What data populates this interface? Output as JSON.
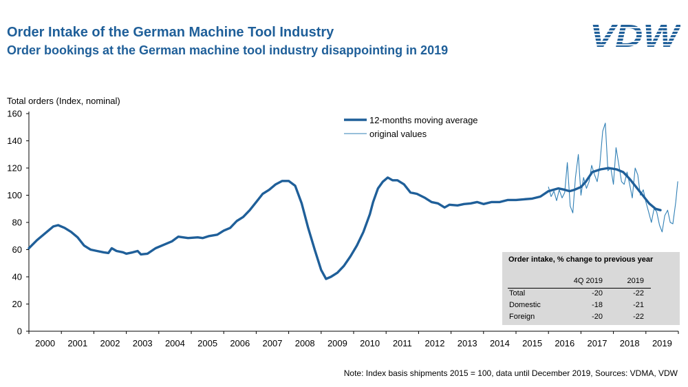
{
  "header": {
    "title": "Order Intake of the German Machine Tool Industry",
    "subtitle": "Order bookings at the German machine tool industry disappointing in 2019",
    "logo_text": "VDW"
  },
  "colors": {
    "brand": "#1f5f99",
    "series_avg": "#1f5f99",
    "series_orig": "#2f7fb5",
    "table_bg": "#d9d9d9"
  },
  "note": "Note: Index basis shipments  2015 = 100, data until December 2019, Sources: VDMA, VDW",
  "table": {
    "title": "Order intake, % change to previous year",
    "col_headers": [
      "",
      "4Q 2019",
      "2019"
    ],
    "rows": [
      {
        "label": "Total",
        "q4": "-20",
        "year": "-22"
      },
      {
        "label": "Domestic",
        "q4": "-18",
        "year": "-21"
      },
      {
        "label": "Foreign",
        "q4": "-20",
        "year": "-22"
      }
    ]
  },
  "chart_data": {
    "type": "line",
    "title": "Order Intake of the German Machine Tool Industry",
    "ylabel": "Total orders (Index, nominal)",
    "xlabel": "",
    "ylim": [
      0,
      160
    ],
    "yticks": [
      0,
      20,
      40,
      60,
      80,
      100,
      120,
      140,
      160
    ],
    "xlim": [
      2000,
      2020
    ],
    "categories": [
      "2000",
      "2001",
      "2002",
      "2003",
      "2004",
      "2005",
      "2006",
      "2007",
      "2008",
      "2009",
      "2010",
      "2011",
      "2012",
      "2013",
      "2014",
      "2015",
      "2016",
      "2017",
      "2018",
      "2019"
    ],
    "grid": false,
    "legend_position": "top-center",
    "series": [
      {
        "name": "12-months moving average",
        "style": "thick",
        "points": [
          [
            2000.0,
            61
          ],
          [
            2000.25,
            67
          ],
          [
            2000.5,
            72
          ],
          [
            2000.75,
            77
          ],
          [
            2000.9,
            78
          ],
          [
            2001.1,
            76
          ],
          [
            2001.3,
            73
          ],
          [
            2001.5,
            69
          ],
          [
            2001.7,
            63
          ],
          [
            2001.9,
            60
          ],
          [
            2002.1,
            59
          ],
          [
            2002.3,
            58
          ],
          [
            2002.45,
            57.5
          ],
          [
            2002.55,
            61
          ],
          [
            2002.7,
            59
          ],
          [
            2002.9,
            58
          ],
          [
            2003.0,
            57
          ],
          [
            2003.2,
            58
          ],
          [
            2003.35,
            59
          ],
          [
            2003.45,
            56.5
          ],
          [
            2003.65,
            57
          ],
          [
            2003.9,
            61
          ],
          [
            2004.2,
            64
          ],
          [
            2004.4,
            66
          ],
          [
            2004.6,
            69.5
          ],
          [
            2004.9,
            68.5
          ],
          [
            2005.2,
            69
          ],
          [
            2005.35,
            68.5
          ],
          [
            2005.55,
            70
          ],
          [
            2005.8,
            71
          ],
          [
            2006.0,
            74
          ],
          [
            2006.2,
            76
          ],
          [
            2006.4,
            81
          ],
          [
            2006.6,
            84
          ],
          [
            2006.8,
            89
          ],
          [
            2007.0,
            95
          ],
          [
            2007.2,
            101
          ],
          [
            2007.4,
            104
          ],
          [
            2007.6,
            108
          ],
          [
            2007.8,
            110.5
          ],
          [
            2008.0,
            110.5
          ],
          [
            2008.2,
            107
          ],
          [
            2008.4,
            94
          ],
          [
            2008.6,
            76
          ],
          [
            2008.8,
            60
          ],
          [
            2009.0,
            45
          ],
          [
            2009.15,
            38.5
          ],
          [
            2009.3,
            40
          ],
          [
            2009.5,
            43
          ],
          [
            2009.7,
            48
          ],
          [
            2009.9,
            55
          ],
          [
            2010.1,
            63
          ],
          [
            2010.3,
            73
          ],
          [
            2010.5,
            86
          ],
          [
            2010.6,
            95
          ],
          [
            2010.75,
            105
          ],
          [
            2010.9,
            110
          ],
          [
            2011.05,
            113
          ],
          [
            2011.2,
            111
          ],
          [
            2011.35,
            111
          ],
          [
            2011.55,
            108
          ],
          [
            2011.75,
            102
          ],
          [
            2011.95,
            101
          ],
          [
            2012.2,
            98
          ],
          [
            2012.4,
            95
          ],
          [
            2012.6,
            94
          ],
          [
            2012.8,
            91
          ],
          [
            2012.95,
            93
          ],
          [
            2013.2,
            92.5
          ],
          [
            2013.4,
            93.5
          ],
          [
            2013.6,
            94
          ],
          [
            2013.8,
            95
          ],
          [
            2014.0,
            93.5
          ],
          [
            2014.25,
            95
          ],
          [
            2014.5,
            95
          ],
          [
            2014.75,
            96.5
          ],
          [
            2015.0,
            96.5
          ],
          [
            2015.25,
            97
          ],
          [
            2015.5,
            97.5
          ],
          [
            2015.75,
            99
          ],
          [
            2016.0,
            103
          ],
          [
            2016.3,
            105
          ],
          [
            2016.5,
            104
          ],
          [
            2016.65,
            103
          ],
          [
            2016.8,
            104
          ],
          [
            2017.0,
            106
          ],
          [
            2017.15,
            110
          ],
          [
            2017.35,
            117
          ],
          [
            2017.6,
            119
          ],
          [
            2017.85,
            120
          ],
          [
            2018.1,
            119
          ],
          [
            2018.3,
            117
          ],
          [
            2018.5,
            112
          ],
          [
            2018.7,
            106
          ],
          [
            2018.9,
            100
          ],
          [
            2019.1,
            94
          ],
          [
            2019.3,
            90
          ],
          [
            2019.45,
            89
          ]
        ]
      },
      {
        "name": "original values",
        "style": "thin",
        "points": [
          [
            2016.0,
            106
          ],
          [
            2016.08,
            99
          ],
          [
            2016.17,
            103
          ],
          [
            2016.25,
            96
          ],
          [
            2016.33,
            104
          ],
          [
            2016.42,
            98
          ],
          [
            2016.5,
            102
          ],
          [
            2016.58,
            124
          ],
          [
            2016.67,
            92
          ],
          [
            2016.75,
            87
          ],
          [
            2016.83,
            113
          ],
          [
            2016.92,
            130
          ],
          [
            2017.0,
            100
          ],
          [
            2017.08,
            113
          ],
          [
            2017.17,
            105
          ],
          [
            2017.25,
            110
          ],
          [
            2017.33,
            122
          ],
          [
            2017.42,
            115
          ],
          [
            2017.5,
            110
          ],
          [
            2017.58,
            122
          ],
          [
            2017.67,
            147
          ],
          [
            2017.75,
            153
          ],
          [
            2017.83,
            118
          ],
          [
            2017.92,
            120
          ],
          [
            2018.0,
            108
          ],
          [
            2018.08,
            135
          ],
          [
            2018.17,
            122
          ],
          [
            2018.25,
            110
          ],
          [
            2018.33,
            108
          ],
          [
            2018.42,
            117
          ],
          [
            2018.5,
            108
          ],
          [
            2018.58,
            98
          ],
          [
            2018.67,
            120
          ],
          [
            2018.75,
            115
          ],
          [
            2018.83,
            100
          ],
          [
            2018.92,
            104
          ],
          [
            2019.0,
            95
          ],
          [
            2019.08,
            88
          ],
          [
            2019.17,
            80
          ],
          [
            2019.25,
            90
          ],
          [
            2019.33,
            88
          ],
          [
            2019.42,
            78
          ],
          [
            2019.5,
            73
          ],
          [
            2019.58,
            85
          ],
          [
            2019.67,
            89
          ],
          [
            2019.75,
            80
          ],
          [
            2019.83,
            79
          ],
          [
            2019.92,
            95
          ],
          [
            2019.98,
            110
          ]
        ]
      }
    ]
  }
}
